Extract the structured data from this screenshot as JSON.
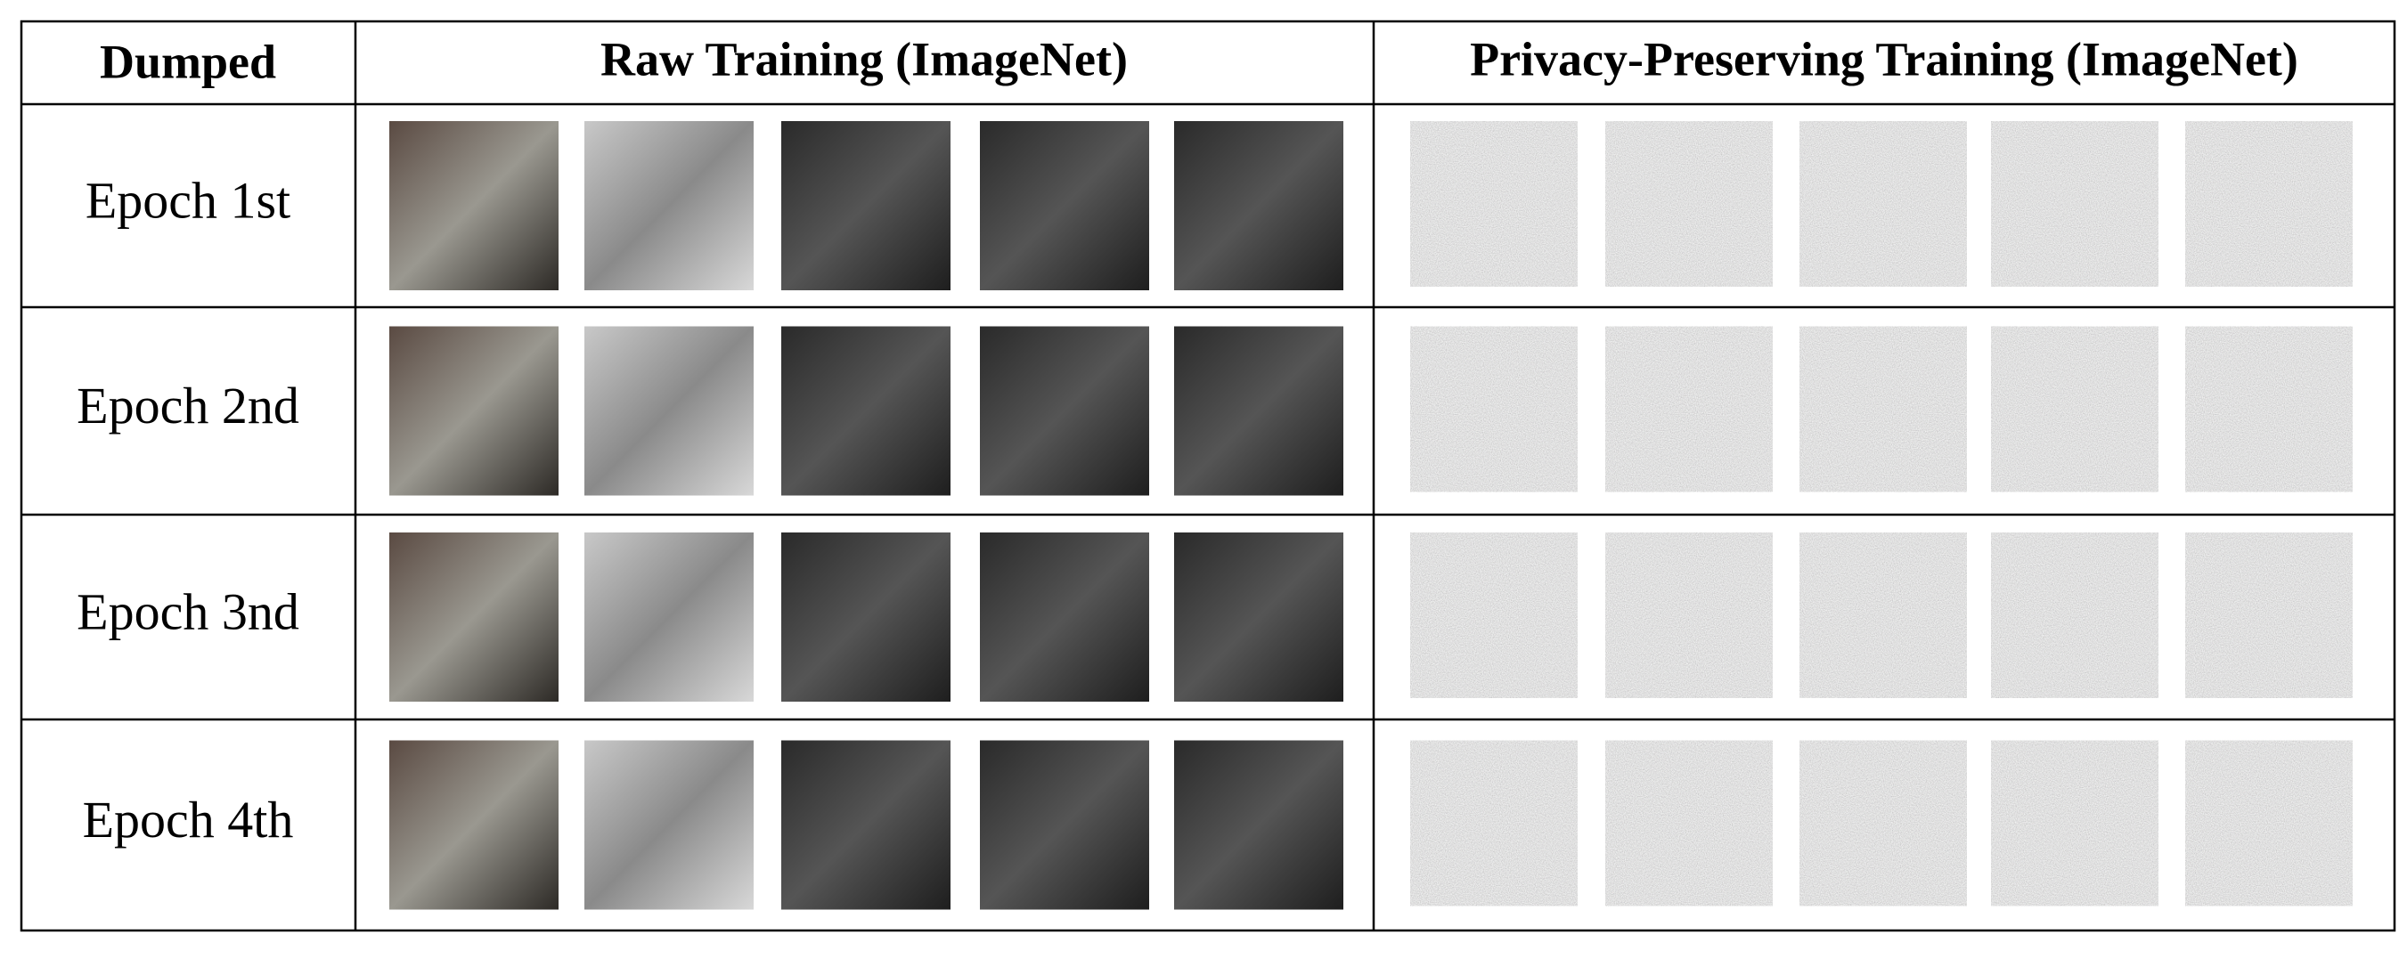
{
  "table": {
    "header": [
      "Dumped",
      "Raw Training (ImageNet)",
      "Privacy-Preserving Training (ImageNet)"
    ],
    "rows": [
      "Epoch 1st",
      "Epoch 2nd",
      "Epoch 3nd",
      "Epoch 4th"
    ]
  }
}
